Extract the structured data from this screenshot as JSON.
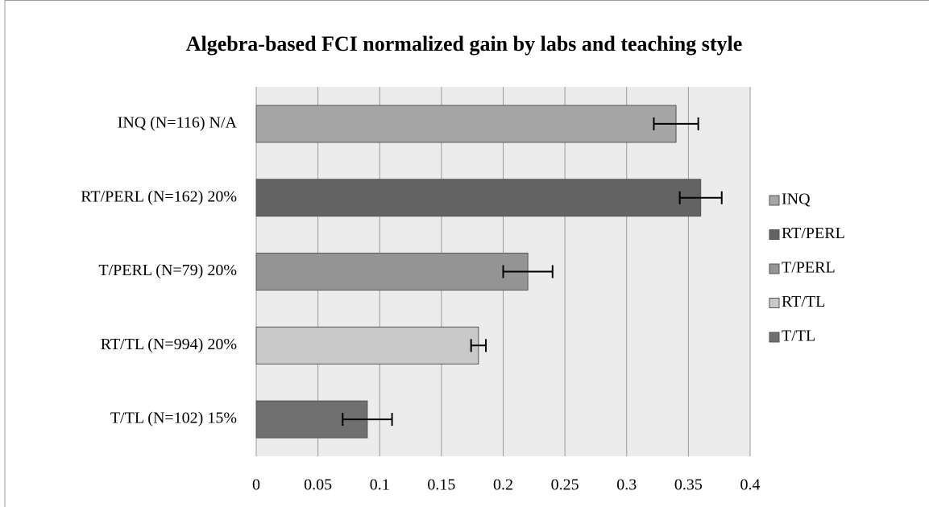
{
  "chart_data": {
    "type": "bar",
    "orientation": "horizontal",
    "title": "Algebra-based FCI normalized gain by labs and teaching style",
    "categories": [
      "INQ (N=116) N/A",
      "RT/PERL (N=162) 20%",
      "T/PERL (N=79) 20%",
      "RT/TL (N=994) 20%",
      "T/TL (N=102) 15%"
    ],
    "series": [
      {
        "name": "INQ",
        "color": "#a6a6a6",
        "values": [
          0.34,
          null,
          null,
          null,
          null
        ],
        "errors": [
          0.018,
          null,
          null,
          null,
          null
        ]
      },
      {
        "name": "RT/PERL",
        "color": "#636363",
        "values": [
          null,
          0.36,
          null,
          null,
          null
        ],
        "errors": [
          null,
          0.017,
          null,
          null,
          null
        ]
      },
      {
        "name": "T/PERL",
        "color": "#949494",
        "values": [
          null,
          null,
          0.22,
          null,
          null
        ],
        "errors": [
          null,
          null,
          0.02,
          null,
          null
        ]
      },
      {
        "name": "RT/TL",
        "color": "#c9c9c9",
        "values": [
          null,
          null,
          null,
          0.18,
          null
        ],
        "errors": [
          null,
          null,
          null,
          0.006,
          null
        ]
      },
      {
        "name": "T/TL",
        "color": "#6f6f6f",
        "values": [
          null,
          null,
          null,
          null,
          0.09
        ],
        "errors": [
          null,
          null,
          null,
          null,
          0.02
        ]
      }
    ],
    "xlim": [
      0,
      0.4
    ],
    "xticks": [
      0,
      0.05,
      0.1,
      0.15,
      0.2,
      0.25,
      0.3,
      0.35,
      0.4
    ],
    "grid": true,
    "legend": "right"
  }
}
